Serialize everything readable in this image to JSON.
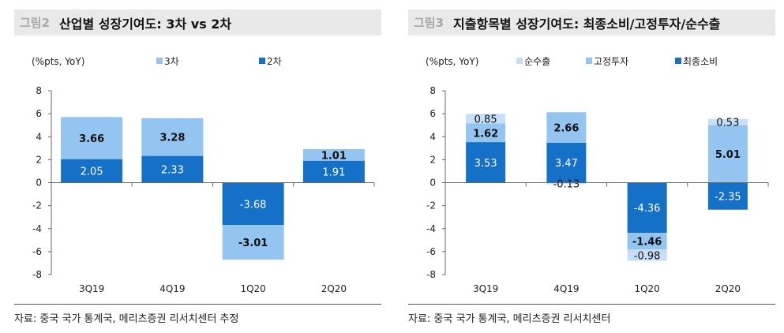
{
  "colors": {
    "dark": "#1570c8",
    "light": "#94c4f0",
    "lighter": "#c6def6"
  },
  "chart_data": [
    {
      "type": "bar",
      "stacked": true,
      "figure_num": "그림2",
      "title": "산업별 성장기여도: 3차 vs 2차",
      "ylabel": "(%pts, YoY)",
      "ylim": [
        -8,
        8
      ],
      "yticks": [
        8,
        6,
        4,
        2,
        0,
        -2,
        -4,
        -6,
        -8
      ],
      "legend": "top",
      "categories": [
        "3Q19",
        "4Q19",
        "1Q20",
        "2Q20"
      ],
      "series": [
        {
          "name": "2차",
          "color": "#1570c8",
          "values": [
            2.05,
            2.33,
            -3.68,
            1.91
          ],
          "labels": [
            "2.05",
            "2.33",
            "-3.68",
            "1.91"
          ],
          "bold": false
        },
        {
          "name": "3차",
          "color": "#94c4f0",
          "values": [
            3.66,
            3.28,
            -3.01,
            1.01
          ],
          "labels": [
            "3.66",
            "3.28",
            "-3.01",
            "1.01"
          ],
          "bold": true
        }
      ],
      "legend_order": [
        1,
        0
      ],
      "source": "자료: 중국 국가 통계국, 메리츠증권 리서치센터 추정"
    },
    {
      "type": "bar",
      "stacked": true,
      "figure_num": "그림3",
      "title": "지출항목별 성장기여도: 최종소비/고정투자/순수출",
      "ylabel": "(%pts, YoY)",
      "ylim": [
        -8,
        8
      ],
      "yticks": [
        8,
        6,
        4,
        2,
        0,
        -2,
        -4,
        -6,
        -8
      ],
      "legend": "top",
      "categories": [
        "3Q19",
        "4Q19",
        "1Q20",
        "2Q20"
      ],
      "series": [
        {
          "name": "최종소비",
          "color": "#1570c8",
          "values": [
            3.53,
            3.47,
            -4.36,
            -2.35
          ],
          "labels": [
            "3.53",
            "3.47",
            "-4.36",
            "-2.35"
          ],
          "bold": false
        },
        {
          "name": "고정투자",
          "color": "#94c4f0",
          "values": [
            1.62,
            2.66,
            -1.46,
            5.01
          ],
          "labels": [
            "1.62",
            "2.66",
            "-1.46",
            "5.01"
          ],
          "bold": true
        },
        {
          "name": "순수출",
          "color": "#c6def6",
          "values": [
            0.85,
            -0.13,
            -0.98,
            0.53
          ],
          "labels": [
            "0.85",
            "-0.13",
            "-0.98",
            "0.53"
          ],
          "bold": false
        }
      ],
      "legend_order": [
        2,
        1,
        0
      ],
      "source": "자료: 중국 국가 통계국, 메리츠증권 리서치센터"
    }
  ]
}
